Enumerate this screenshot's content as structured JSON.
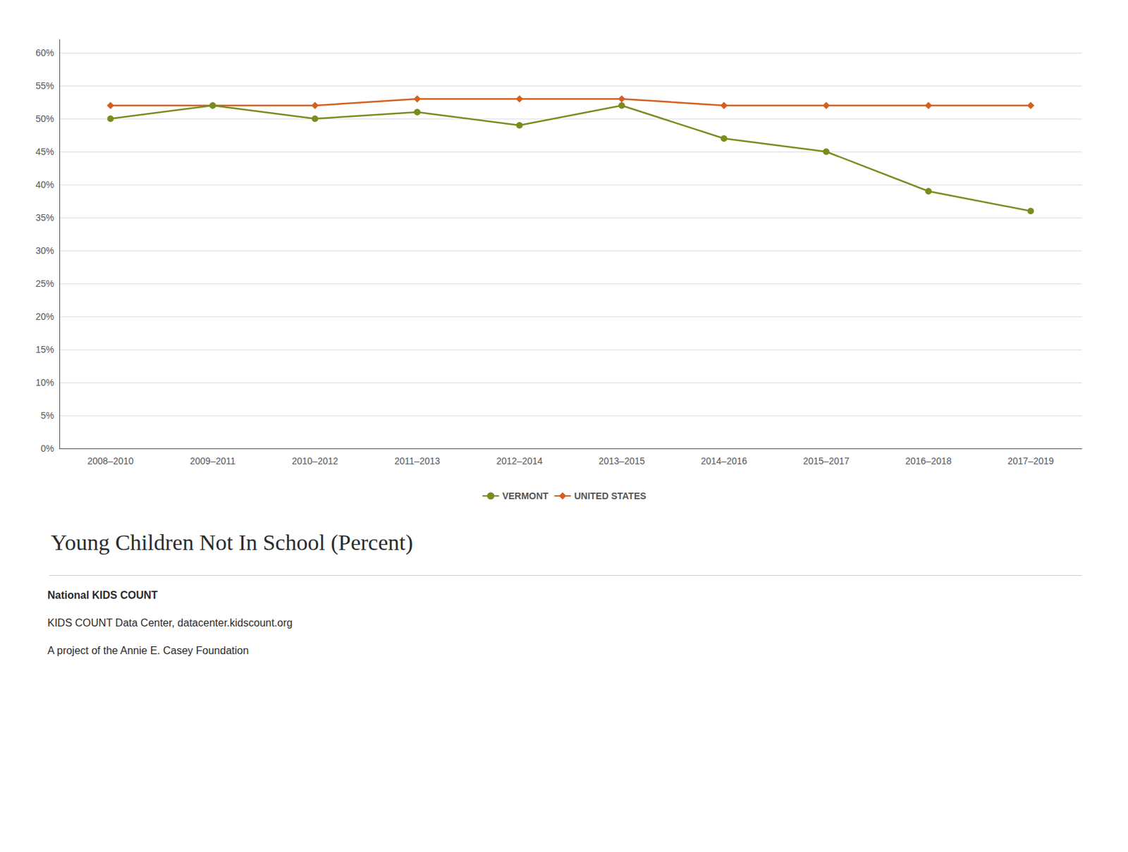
{
  "chart_data": {
    "type": "line",
    "title": "Young Children Not In School (Percent)",
    "categories": [
      "2008–2010",
      "2009–2011",
      "2010–2012",
      "2011–2013",
      "2012–2014",
      "2013–2015",
      "2014–2016",
      "2015–2017",
      "2016–2018",
      "2017–2019"
    ],
    "series": [
      {
        "name": "VERMONT",
        "color": "#7a8c1e",
        "marker": "circle",
        "values": [
          50,
          52,
          50,
          51,
          49,
          52,
          47,
          45,
          39,
          36
        ]
      },
      {
        "name": "UNITED STATES",
        "color": "#d45f1e",
        "marker": "diamond",
        "values": [
          52,
          52,
          52,
          53,
          53,
          53,
          52,
          52,
          52,
          52
        ]
      }
    ],
    "ylim": [
      0,
      62
    ],
    "yticks": [
      {
        "value": 0,
        "label": "0%"
      },
      {
        "value": 5,
        "label": "5%"
      },
      {
        "value": 10,
        "label": "10%"
      },
      {
        "value": 15,
        "label": "15%"
      },
      {
        "value": 20,
        "label": "20%"
      },
      {
        "value": 25,
        "label": "25%"
      },
      {
        "value": 30,
        "label": "30%"
      },
      {
        "value": 35,
        "label": "35%"
      },
      {
        "value": 40,
        "label": "40%"
      },
      {
        "value": 45,
        "label": "45%"
      },
      {
        "value": 50,
        "label": "50%"
      },
      {
        "value": 55,
        "label": "55%"
      },
      {
        "value": 60,
        "label": "60%"
      }
    ],
    "grid": true,
    "legend": "bottom",
    "annotations": [
      "National KIDS COUNT",
      "KIDS COUNT Data Center, datacenter.kidscount.org",
      "A project of the Annie E. Casey Foundation"
    ]
  }
}
